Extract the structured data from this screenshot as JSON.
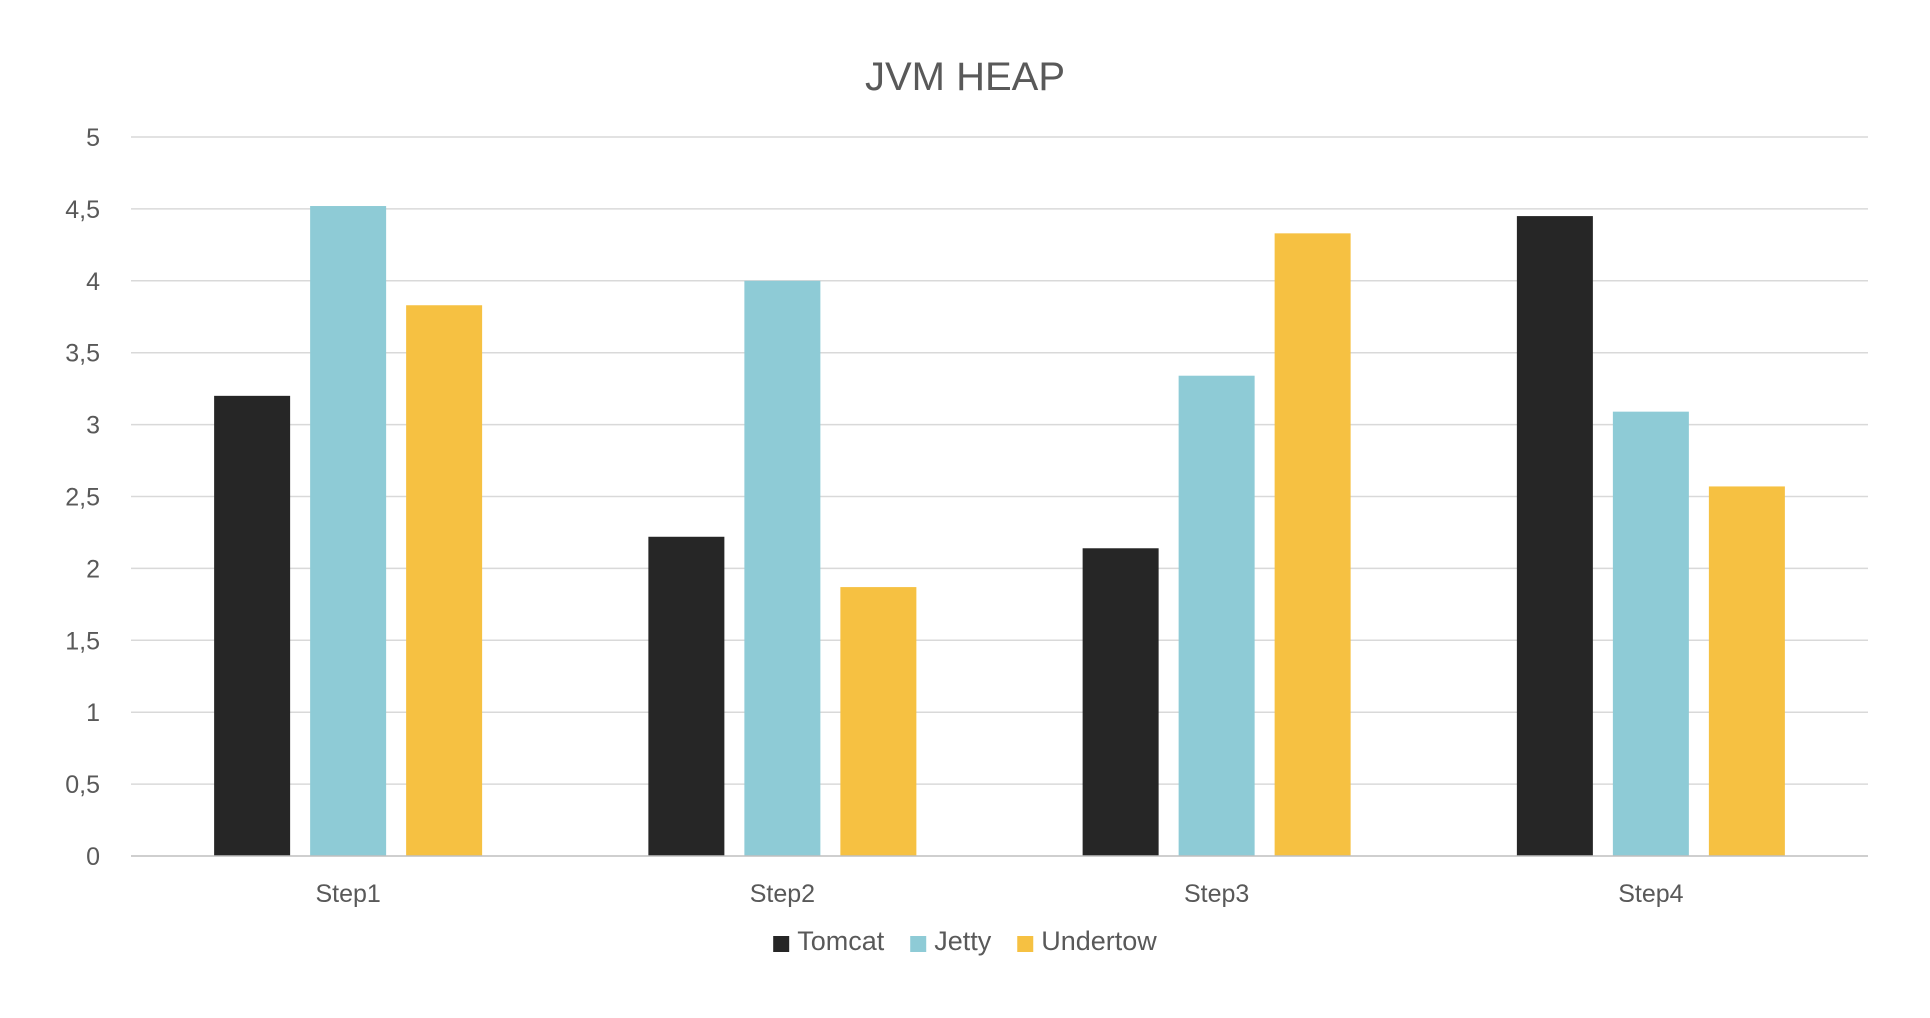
{
  "chart_data": {
    "type": "bar",
    "title": "JVM HEAP",
    "xlabel": "",
    "ylabel": "",
    "categories": [
      "Step1",
      "Step2",
      "Step3",
      "Step4"
    ],
    "series": [
      {
        "name": "Tomcat",
        "color": "#262626",
        "values": [
          3.2,
          2.22,
          2.14,
          4.45
        ]
      },
      {
        "name": "Jetty",
        "color": "#8ecbd6",
        "values": [
          4.52,
          4.0,
          3.34,
          3.09
        ]
      },
      {
        "name": "Undertow",
        "color": "#f6c142",
        "values": [
          3.83,
          1.87,
          4.33,
          2.57
        ]
      }
    ],
    "ylim": [
      0,
      5
    ],
    "yticks": [
      "0",
      "0,5",
      "1",
      "1,5",
      "2",
      "2,5",
      "3",
      "3,5",
      "4",
      "4,5",
      "5"
    ],
    "ytick_values": [
      0,
      0.5,
      1,
      1.5,
      2,
      2.5,
      3,
      3.5,
      4,
      4.5,
      5
    ],
    "grid": true,
    "legend_position": "bottom-center"
  }
}
